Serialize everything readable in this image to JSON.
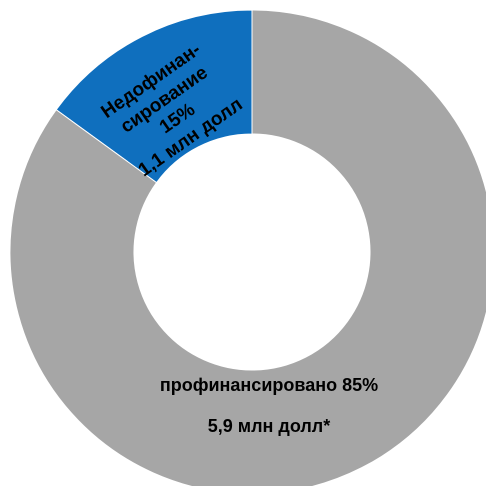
{
  "chart_data": {
    "type": "pie",
    "variant": "donut",
    "slices": [
      {
        "value": 15,
        "color": "#0f6fbe",
        "label_lines": [
          "Недофинан-",
          "сирование",
          "15%",
          "1,1 млн долл"
        ]
      },
      {
        "value": 85,
        "color": "#a6a6a6",
        "label_lines": [
          "профинансировано 85%",
          "5,9 млн долл*"
        ]
      }
    ]
  },
  "background": "#ffffff",
  "slice_border": "#ffffff"
}
